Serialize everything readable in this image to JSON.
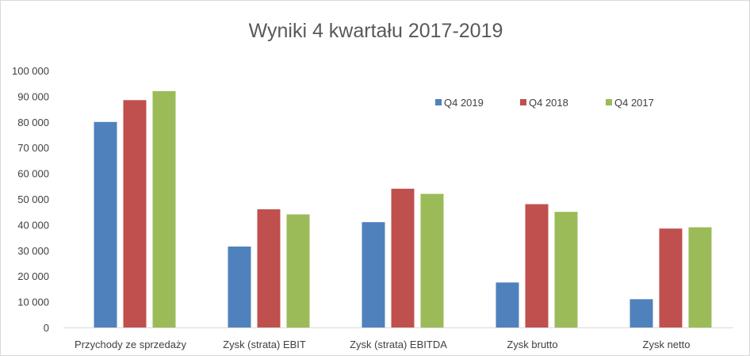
{
  "chart_data": {
    "type": "bar",
    "title": "Wyniki 4 kwartału 2017-2019",
    "categories": [
      "Przychody ze sprzedaży",
      "Zysk (strata) EBIT",
      "Zysk (strata) EBITDA",
      "Zysk brutto",
      "Zysk netto"
    ],
    "series": [
      {
        "name": "Q4 2019",
        "color": "#4f81bd",
        "values": [
          80000,
          31500,
          41000,
          17500,
          11000
        ]
      },
      {
        "name": "Q4 2018",
        "color": "#c0504d",
        "values": [
          88500,
          46000,
          54000,
          48000,
          38500
        ]
      },
      {
        "name": "Q4 2017",
        "color": "#9bbb59",
        "values": [
          92000,
          44000,
          52000,
          45000,
          39000
        ]
      }
    ],
    "ylim": [
      0,
      100000
    ],
    "yticks": [
      0,
      10000,
      20000,
      30000,
      40000,
      50000,
      60000,
      70000,
      80000,
      90000,
      100000
    ],
    "ytick_labels": [
      "0",
      "10 000",
      "20 000",
      "30 000",
      "40 000",
      "50 000",
      "60 000",
      "70 000",
      "80 000",
      "90 000",
      "100 000"
    ],
    "grid": false,
    "legend_position": "top-right"
  }
}
